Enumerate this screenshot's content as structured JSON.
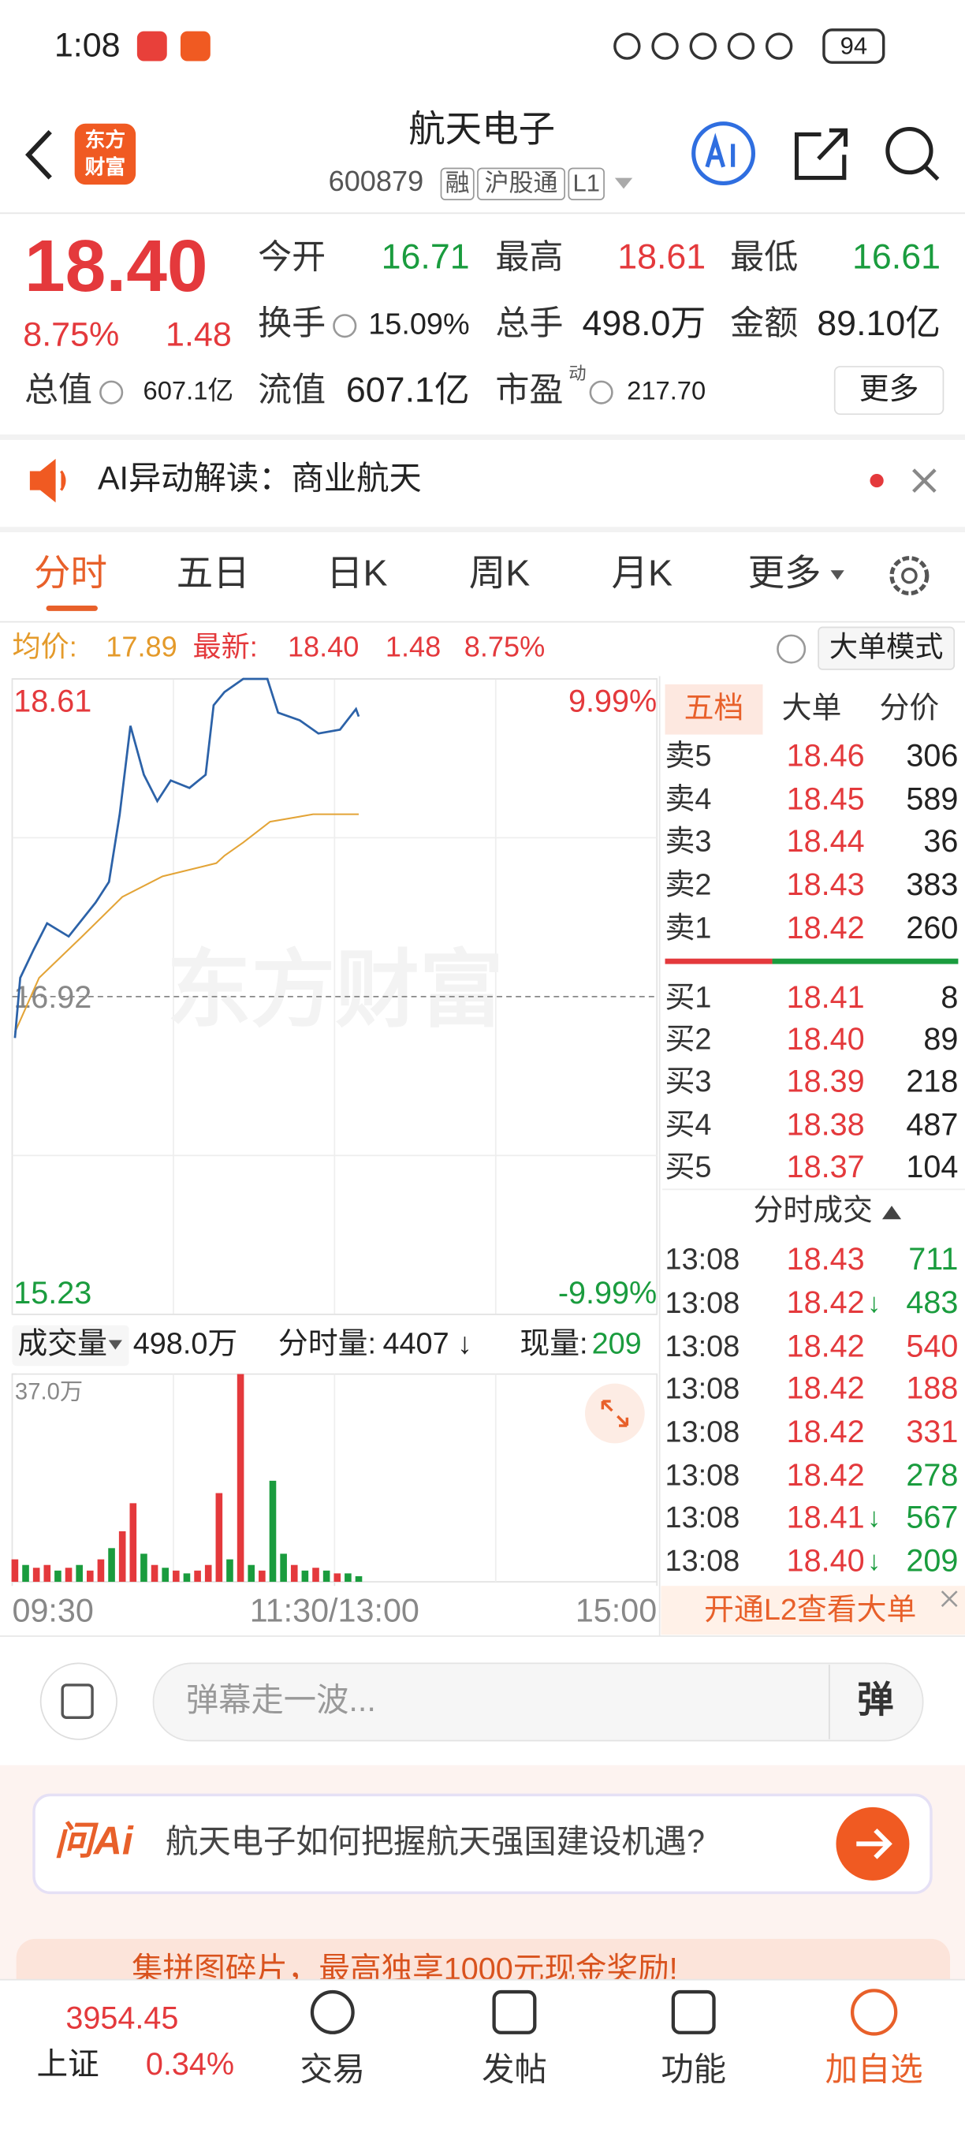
{
  "status_bar": {
    "time": "1:08",
    "battery": "94"
  },
  "header": {
    "logo": [
      "东方",
      "财富"
    ],
    "title": "航天电子",
    "code": "600879",
    "tags": [
      "融",
      "沪股通",
      "L1"
    ]
  },
  "quote": {
    "price": "18.40",
    "pct": "8.75%",
    "change": "1.48",
    "stats": [
      {
        "label": "今开",
        "value": "16.71",
        "color": "#1a9c3e"
      },
      {
        "label": "最高",
        "value": "18.61",
        "color": "#e4393c"
      },
      {
        "label": "最低",
        "value": "16.61",
        "color": "#1a9c3e"
      },
      {
        "label": "换手",
        "value": "15.09%",
        "color": "#222"
      },
      {
        "label": "总手",
        "value": "498.0万",
        "color": "#222"
      },
      {
        "label": "金额",
        "value": "89.10亿",
        "color": "#222"
      },
      {
        "label": "总值",
        "value": "607.1亿",
        "color": "#222"
      },
      {
        "label": "流值",
        "value": "607.1亿",
        "color": "#222"
      },
      {
        "label": "市盈",
        "value": "217.70",
        "color": "#222"
      }
    ],
    "pe_note": "动",
    "more": "更多"
  },
  "ai_banner": {
    "text": "AI异动解读：商业航天"
  },
  "tabs": [
    "分时",
    "五日",
    "日K",
    "周K",
    "月K",
    "更多"
  ],
  "summary": {
    "avg_label": "均价:",
    "avg": "17.89",
    "latest_label": "最新:",
    "latest": "18.40",
    "change": "1.48",
    "pct": "8.75%",
    "mode": "大单模式"
  },
  "chart_data": [
    {
      "type": "line",
      "watermark": "东方财富",
      "xlim": [
        0,
        240
      ],
      "ylim": [
        15.23,
        18.61
      ],
      "yticks": [
        18.61,
        16.92,
        15.23
      ],
      "y2lim": [
        -9.99,
        9.99
      ],
      "y2ticks": [
        {
          "value": 9.99,
          "label": "9.99%"
        },
        {
          "value": -9.99,
          "label": "-9.99%"
        }
      ],
      "xticks": [
        {
          "value": 0,
          "label": "09:30"
        },
        {
          "value": 120,
          "label": "11:30/13:00"
        },
        {
          "value": 240,
          "label": "15:00"
        }
      ],
      "series": [
        {
          "color": "#2c62a8",
          "x": [
            1,
            3,
            8,
            13,
            21,
            31,
            36,
            40,
            44,
            49,
            54,
            59,
            66,
            72,
            75,
            79,
            86,
            95,
            99,
            107,
            114,
            122,
            128,
            129
          ],
          "values": [
            16.7,
            17.02,
            17.17,
            17.31,
            17.24,
            17.42,
            17.53,
            17.89,
            18.36,
            18.1,
            17.96,
            18.07,
            18.03,
            18.1,
            18.47,
            18.54,
            18.61,
            18.61,
            18.43,
            18.39,
            18.32,
            18.34,
            18.45,
            18.41
          ]
        },
        {
          "color": "#e3a437",
          "x": [
            1,
            10,
            26,
            41,
            56,
            76,
            79,
            86,
            96,
            112,
            129
          ],
          "values": [
            16.73,
            17.02,
            17.24,
            17.45,
            17.56,
            17.63,
            17.67,
            17.74,
            17.85,
            17.89,
            17.89
          ]
        }
      ]
    },
    {
      "type": "bar",
      "label": "成交量",
      "total": "498.0万",
      "minute_label": "分时量:",
      "minute_value": "4407",
      "minute_arrow": "↓",
      "current_label": "现量:",
      "current": "209",
      "xlim": [
        0,
        240
      ],
      "ylim": [
        0,
        37
      ],
      "yticks": [
        {
          "value": 37,
          "label": "37.0万"
        }
      ],
      "x": [
        1,
        5,
        9,
        13,
        17,
        21,
        25,
        29,
        33,
        37,
        41,
        45,
        49,
        53,
        57,
        61,
        65,
        69,
        73,
        77,
        81,
        85,
        89,
        93,
        97,
        101,
        105,
        109,
        113,
        117,
        121,
        125,
        129
      ],
      "values": [
        4,
        3,
        2.5,
        3,
        2,
        2.5,
        3,
        2,
        4,
        6,
        9,
        14,
        5,
        3,
        2.5,
        2,
        1.5,
        2,
        3,
        15.8,
        4,
        37,
        3,
        2,
        18,
        5,
        3,
        2,
        2.5,
        2,
        1.5,
        1.5,
        1
      ],
      "colors": [
        "#e4393c",
        "#1a9c3e",
        "#e4393c",
        "#e4393c",
        "#1a9c3e",
        "#e4393c",
        "#1a9c3e",
        "#e4393c",
        "#e4393c",
        "#1a9c3e",
        "#e4393c",
        "#e4393c",
        "#1a9c3e",
        "#e4393c",
        "#1a9c3e",
        "#e4393c",
        "#1a9c3e",
        "#e4393c",
        "#e4393c",
        "#e4393c",
        "#1a9c3e",
        "#e4393c",
        "#1a9c3e",
        "#e4393c",
        "#1a9c3e",
        "#1a9c3e",
        "#e4393c",
        "#1a9c3e",
        "#e4393c",
        "#1a9c3e",
        "#e4393c",
        "#1a9c3e",
        "#1a9c3e"
      ]
    }
  ],
  "order_book": {
    "tabs": [
      "五档",
      "大单",
      "分价"
    ],
    "asks": [
      {
        "label": "卖5",
        "price": "18.46",
        "volume": "306"
      },
      {
        "label": "卖4",
        "price": "18.45",
        "volume": "589"
      },
      {
        "label": "卖3",
        "price": "18.44",
        "volume": "36"
      },
      {
        "label": "卖2",
        "price": "18.43",
        "volume": "383"
      },
      {
        "label": "卖1",
        "price": "18.42",
        "volume": "260"
      }
    ],
    "bids": [
      {
        "label": "买1",
        "price": "18.41",
        "volume": "8"
      },
      {
        "label": "买2",
        "price": "18.40",
        "volume": "89"
      },
      {
        "label": "买3",
        "price": "18.39",
        "volume": "218"
      },
      {
        "label": "买4",
        "price": "18.38",
        "volume": "487"
      },
      {
        "label": "买5",
        "price": "18.37",
        "volume": "104"
      }
    ],
    "trades_title": "分时成交",
    "trades": [
      {
        "time": "13:08",
        "price": "18.43",
        "volume": "711",
        "volume_color": "#1a9c3e"
      },
      {
        "time": "13:08",
        "price": "18.42",
        "arrow": "↓",
        "volume": "483",
        "volume_color": "#1a9c3e"
      },
      {
        "time": "13:08",
        "price": "18.42",
        "volume": "540",
        "volume_color": "#e4393c"
      },
      {
        "time": "13:08",
        "price": "18.42",
        "volume": "188",
        "volume_color": "#e4393c"
      },
      {
        "time": "13:08",
        "price": "18.42",
        "volume": "331",
        "volume_color": "#e4393c"
      },
      {
        "time": "13:08",
        "price": "18.42",
        "volume": "278",
        "volume_color": "#1a9c3e"
      },
      {
        "time": "13:08",
        "price": "18.41",
        "arrow": "↓",
        "volume": "567",
        "volume_color": "#1a9c3e"
      },
      {
        "time": "13:08",
        "price": "18.40",
        "arrow": "↓",
        "volume": "209",
        "volume_color": "#1a9c3e"
      }
    ],
    "l2": "开通L2查看大单"
  },
  "comment": {
    "placeholder": "弹幕走一波...",
    "button": "弹"
  },
  "ask_ai": {
    "brand": "问Ai",
    "question": "航天电子如何把握航天强国建设机遇?"
  },
  "promo": {
    "text": "集拼图碎片，最高独享1000元现金奖励!"
  },
  "bottom_nav": {
    "index_value": "3954.45",
    "index_name": "上证",
    "index_pct": "0.34%",
    "items": [
      "交易",
      "发帖",
      "功能",
      "加自选"
    ]
  }
}
